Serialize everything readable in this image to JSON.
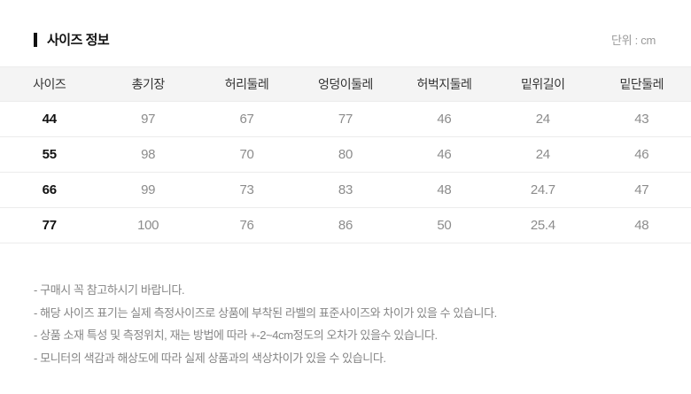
{
  "header": {
    "section_title": "사이즈 정보",
    "unit_label": "단위 : cm"
  },
  "size_table": {
    "columns": [
      "사이즈",
      "총기장",
      "허리둘레",
      "엉덩이둘레",
      "허벅지둘레",
      "밑위길이",
      "밑단둘레"
    ],
    "rows": [
      {
        "size": "44",
        "values": [
          "97",
          "67",
          "77",
          "46",
          "24",
          "43"
        ]
      },
      {
        "size": "55",
        "values": [
          "98",
          "70",
          "80",
          "46",
          "24",
          "46"
        ]
      },
      {
        "size": "66",
        "values": [
          "99",
          "73",
          "83",
          "48",
          "24.7",
          "47"
        ]
      },
      {
        "size": "77",
        "values": [
          "100",
          "76",
          "86",
          "50",
          "25.4",
          "48"
        ]
      }
    ]
  },
  "notes": [
    "- 구매시 꼭 참고하시기 바랍니다.",
    "- 해당 사이즈 표기는 실제 측정사이즈로 상품에 부착된 라벨의 표준사이즈와 차이가 있을 수 있습니다.",
    "- 상품 소재 특성 및 측정위치, 재는 방법에 따라 +-2~4cm정도의 오차가 있을수 있습니다.",
    "- 모니터의 색감과 해상도에 따라 실제 상품과의 색상차이가 있을 수 있습니다."
  ],
  "colors": {
    "header_row_bg": "#f4f4f4",
    "row_border": "#ececec",
    "size_text": "#111111",
    "value_text": "#8c8c8c",
    "note_text": "#858585"
  }
}
